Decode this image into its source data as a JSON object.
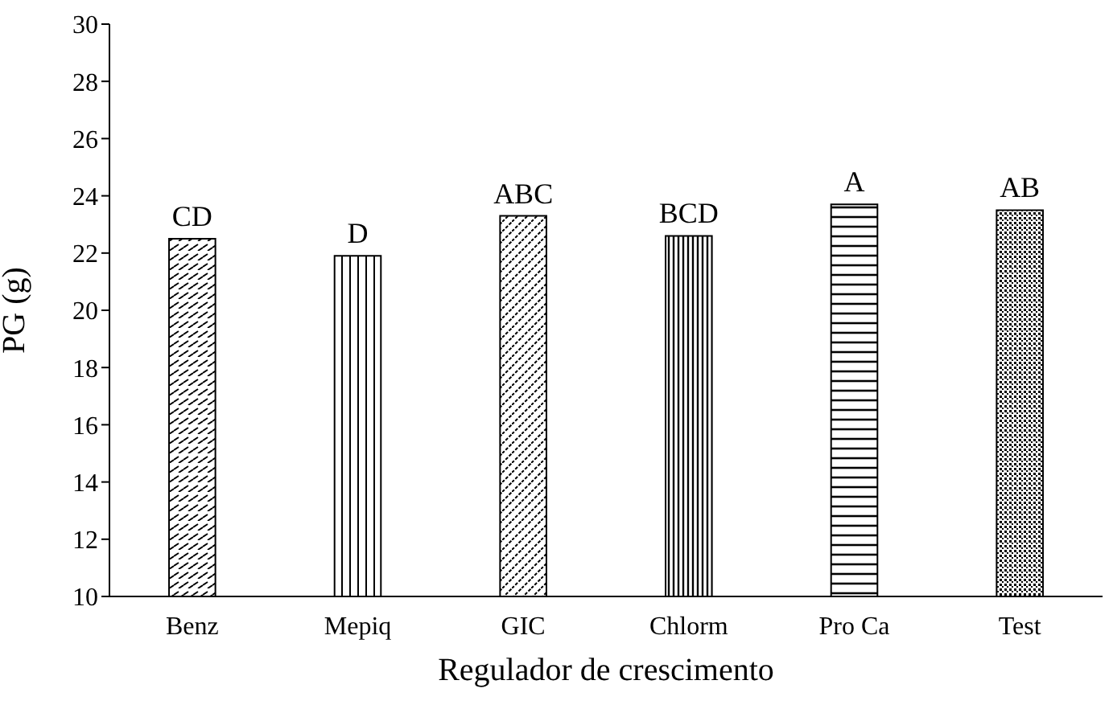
{
  "chart_data": {
    "type": "bar",
    "xlabel": "Regulador de crescimento",
    "ylabel": "PG (g)",
    "categories": [
      "Benz",
      "Mepiq",
      "GIC",
      "Chlorm",
      "Pro Ca",
      "Test"
    ],
    "values": [
      22.5,
      21.9,
      23.3,
      22.6,
      23.7,
      23.5
    ],
    "color": "#000000",
    "ylim": [
      10,
      30
    ],
    "yticks": [
      10,
      12,
      14,
      16,
      18,
      20,
      22,
      24,
      26,
      28,
      30
    ],
    "grid": false,
    "annotations": [
      {
        "text": "CD",
        "x": "Benz",
        "y": 22.5
      },
      {
        "text": "D",
        "x": "Mepiq",
        "y": 21.9
      },
      {
        "text": "ABC",
        "x": "GIC",
        "y": 23.3
      },
      {
        "text": "BCD",
        "x": "Chlorm",
        "y": 22.6
      },
      {
        "text": "A",
        "x": "Pro Ca",
        "y": 23.7
      },
      {
        "text": "AB",
        "x": "Test",
        "y": 23.5
      }
    ]
  }
}
